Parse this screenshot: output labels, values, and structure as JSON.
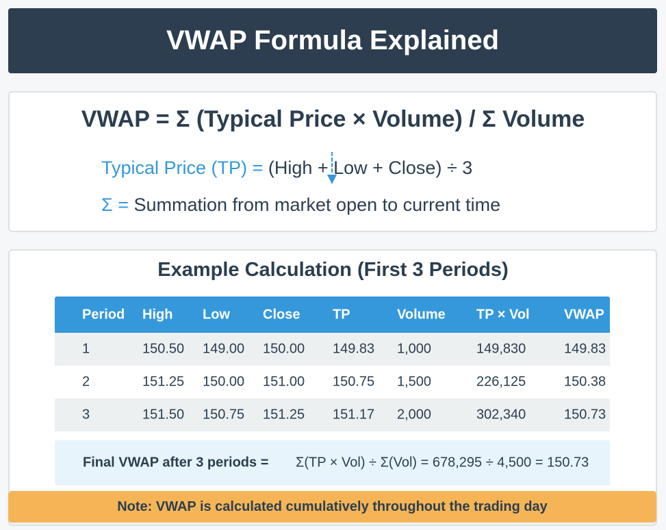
{
  "header": {
    "title": "VWAP Formula Explained"
  },
  "formula": {
    "main": "VWAP = Σ (Typical Price × Volume) / Σ Volume",
    "tp_label": "Typical Price (TP) =",
    "tp_value": "(High + Low + Close) ÷ 3",
    "sigma_label": "Σ =",
    "sigma_value": "Summation from market open to current time"
  },
  "example": {
    "title": "Example Calculation (First 3 Periods)",
    "columns": [
      "Period",
      "High",
      "Low",
      "Close",
      "TP",
      "Volume",
      "TP × Vol",
      "VWAP"
    ],
    "rows": [
      [
        "1",
        "150.50",
        "149.00",
        "150.00",
        "149.83",
        "1,000",
        "149,830",
        "149.83"
      ],
      [
        "2",
        "151.25",
        "150.00",
        "151.00",
        "150.75",
        "1,500",
        "226,125",
        "150.38"
      ],
      [
        "3",
        "151.50",
        "150.75",
        "151.25",
        "151.17",
        "2,000",
        "302,340",
        "150.73"
      ]
    ],
    "summary_label": "Final VWAP after 3 periods =",
    "summary_value": "Σ(TP × Vol) ÷ Σ(Vol) = 678,295 ÷ 4,500 = 150.73"
  },
  "note": "Note: VWAP is calculated cumulatively throughout the trading day",
  "colors": {
    "header": "#2c3e50",
    "accent": "#3498db",
    "note": "#f5b556",
    "summary": "#e8f4fc"
  }
}
